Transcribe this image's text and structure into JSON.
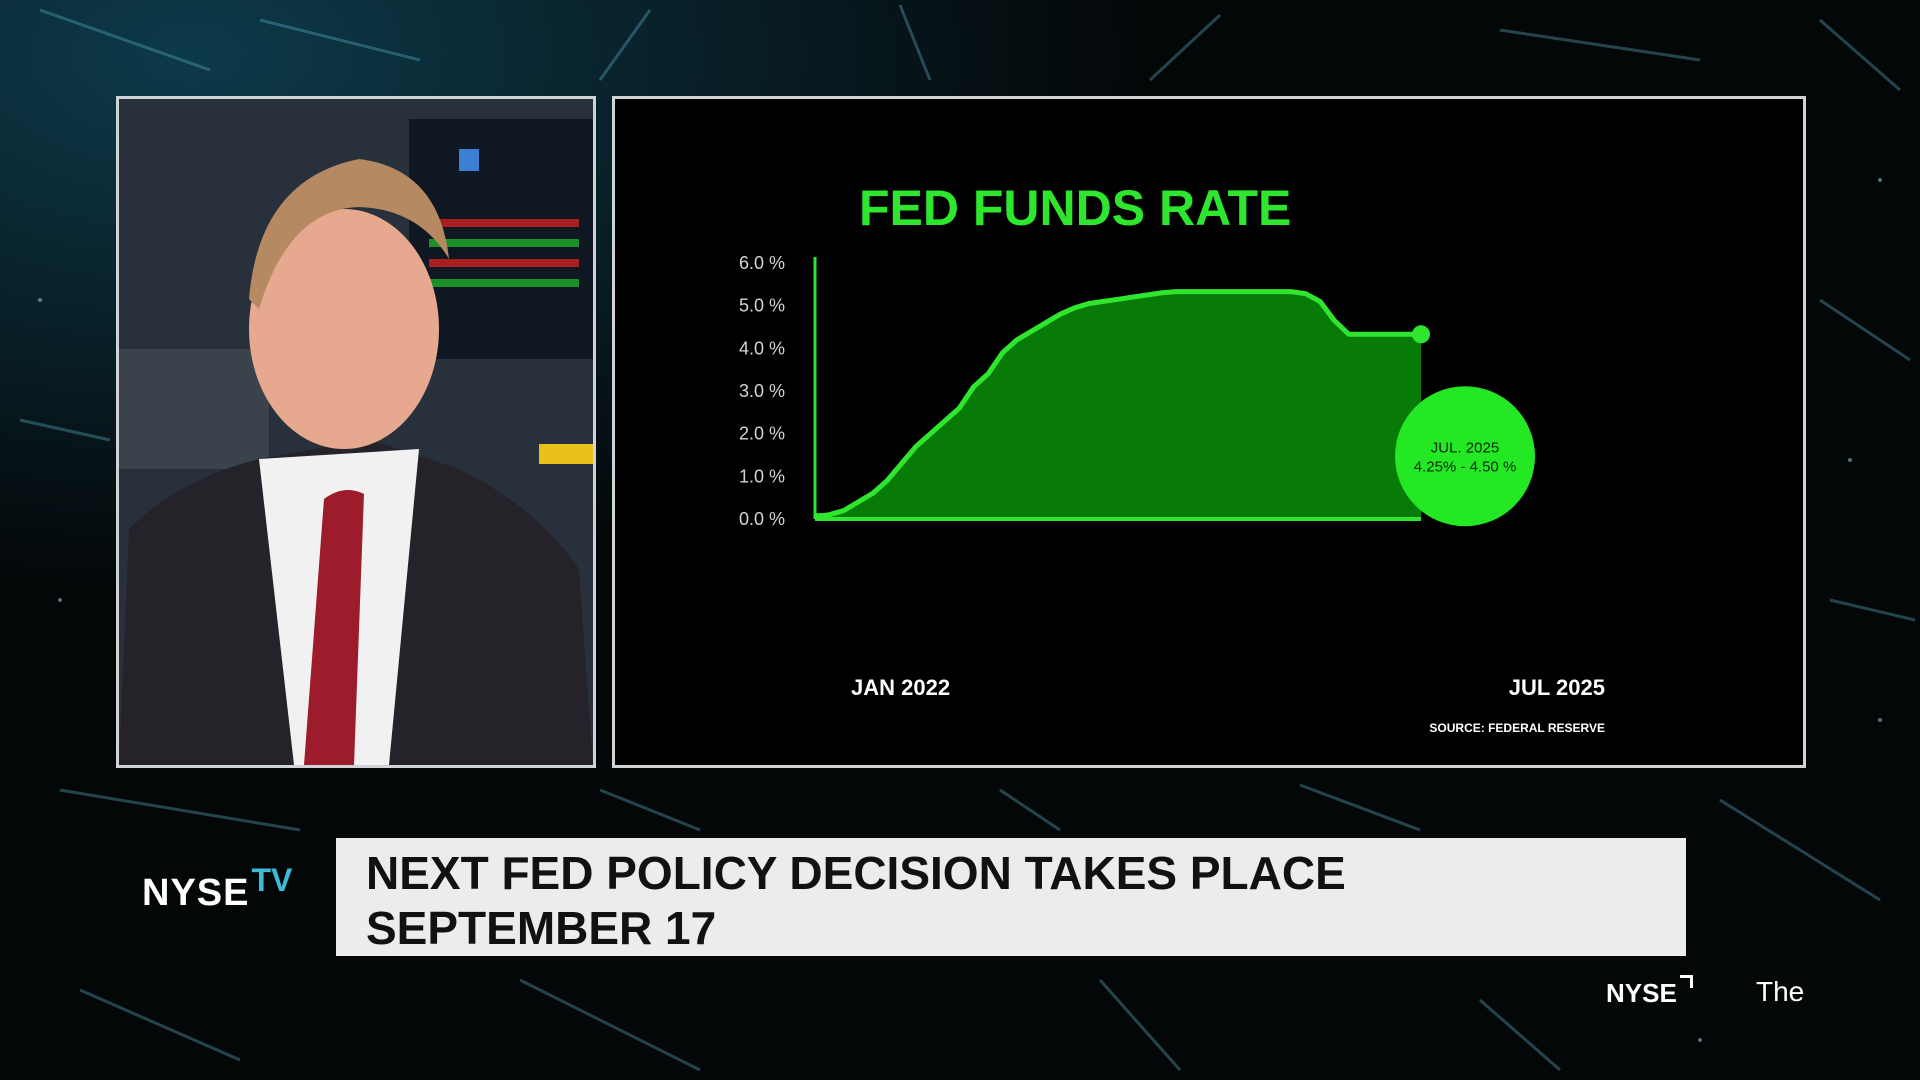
{
  "chart_data": {
    "type": "area",
    "title": "FED FUNDS RATE",
    "y_ticks": [
      "6.0 %",
      "5.0 %",
      "4.0 %",
      "3.0 %",
      "2.0 %",
      "1.0 %",
      "0.0 %"
    ],
    "ylim": [
      0,
      6
    ],
    "x_start_label": "JAN 2022",
    "x_end_label": "JUL 2025",
    "x": [
      0,
      0.5,
      1,
      2,
      3,
      4,
      5,
      6,
      7,
      8,
      9,
      10,
      11,
      12,
      13,
      14,
      15,
      16,
      17,
      18,
      19,
      20,
      21,
      22,
      23,
      24,
      25,
      26,
      27,
      28,
      29,
      30,
      31,
      32,
      33,
      34,
      35,
      36,
      37,
      38,
      39,
      40,
      41,
      42
    ],
    "values": [
      0.08,
      0.08,
      0.1,
      0.2,
      0.4,
      0.6,
      0.9,
      1.3,
      1.7,
      2.0,
      2.3,
      2.6,
      3.1,
      3.4,
      3.9,
      4.2,
      4.4,
      4.6,
      4.8,
      4.95,
      5.05,
      5.1,
      5.15,
      5.2,
      5.25,
      5.3,
      5.33,
      5.33,
      5.33,
      5.33,
      5.33,
      5.33,
      5.33,
      5.33,
      5.33,
      5.28,
      5.1,
      4.65,
      4.33,
      4.33,
      4.33,
      4.33,
      4.33,
      4.33
    ],
    "grid": false,
    "legend": "none",
    "callout": {
      "line1": "JUL. 2025",
      "line2": "4.25% - 4.50 %"
    },
    "source": "SOURCE: FEDERAL RESERVE",
    "colors": {
      "line": "#2ee62e",
      "fill": "#087a08",
      "callout": "#23e823",
      "axis": "#2ee62e"
    }
  },
  "lower_third": {
    "headline_line1": "NEXT FED POLICY DECISION TAKES PLACE",
    "headline_line2": "SEPTEMBER 17"
  },
  "branding": {
    "nyse_tv_nyse": "NYSE",
    "nyse_tv_tv": "TV",
    "nyse_mini": "NYSE",
    "ticker_text": "The"
  }
}
